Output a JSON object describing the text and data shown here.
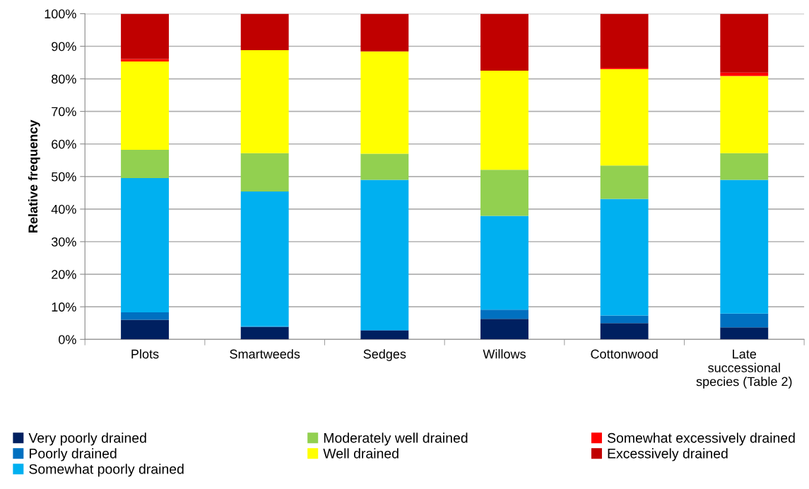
{
  "chart_data": {
    "type": "bar",
    "stacked": true,
    "ylabel": "Relative frequency",
    "categories": [
      "Plots",
      "Smartweeds",
      "Sedges",
      "Willows",
      "Cottonwood",
      "Late\nsuccessional\nspecies (Table 2)"
    ],
    "series": [
      {
        "name": "Very poorly drained",
        "color": "#002060",
        "values": [
          6.0,
          3.8,
          2.7,
          6.3,
          5.0,
          3.7
        ]
      },
      {
        "name": "Poorly drained",
        "color": "#0070c0",
        "values": [
          2.3,
          0.2,
          0.2,
          2.8,
          2.3,
          4.2
        ]
      },
      {
        "name": "Somewhat poorly drained",
        "color": "#00b0f0",
        "values": [
          41.2,
          41.4,
          46.1,
          28.8,
          35.8,
          41.1
        ]
      },
      {
        "name": "Moderately well drained",
        "color": "#92d050",
        "values": [
          8.7,
          11.8,
          8.0,
          14.2,
          10.3,
          8.2
        ]
      },
      {
        "name": "Well drained",
        "color": "#ffff00",
        "values": [
          27.1,
          31.6,
          31.4,
          30.4,
          29.6,
          23.7
        ]
      },
      {
        "name": "Somewhat excessively drained",
        "color": "#ff0000",
        "values": [
          0.8,
          0,
          0,
          0,
          0.4,
          1.0
        ]
      },
      {
        "name": "Excessively drained",
        "color": "#c00000",
        "values": [
          13.9,
          11.2,
          11.6,
          17.5,
          16.6,
          18.1
        ]
      }
    ],
    "ylim": [
      0,
      100
    ],
    "yticks": [
      {
        "value": 0,
        "label": "0%"
      },
      {
        "value": 10,
        "label": "10%"
      },
      {
        "value": 20,
        "label": "20%"
      },
      {
        "value": 30,
        "label": "30%"
      },
      {
        "value": 40,
        "label": "40%"
      },
      {
        "value": 50,
        "label": "50%"
      },
      {
        "value": 60,
        "label": "60%"
      },
      {
        "value": 70,
        "label": "70%"
      },
      {
        "value": 80,
        "label": "80%"
      },
      {
        "value": 90,
        "label": "90%"
      },
      {
        "value": 100,
        "label": "100%"
      }
    ],
    "grid": "y",
    "legend": "bottom"
  }
}
